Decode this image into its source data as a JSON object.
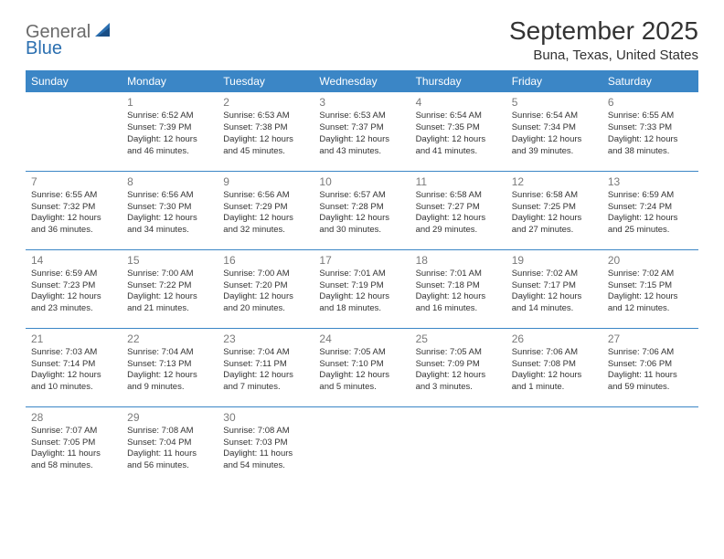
{
  "logo": {
    "part1": "General",
    "part2": "Blue"
  },
  "title": "September 2025",
  "location": "Buna, Texas, United States",
  "header_bg": "#3b86c6",
  "border_color": "#3b86c6",
  "weekdays": [
    "Sunday",
    "Monday",
    "Tuesday",
    "Wednesday",
    "Thursday",
    "Friday",
    "Saturday"
  ],
  "weeks": [
    [
      null,
      {
        "n": "1",
        "sr": "Sunrise: 6:52 AM",
        "ss": "Sunset: 7:39 PM",
        "d1": "Daylight: 12 hours",
        "d2": "and 46 minutes."
      },
      {
        "n": "2",
        "sr": "Sunrise: 6:53 AM",
        "ss": "Sunset: 7:38 PM",
        "d1": "Daylight: 12 hours",
        "d2": "and 45 minutes."
      },
      {
        "n": "3",
        "sr": "Sunrise: 6:53 AM",
        "ss": "Sunset: 7:37 PM",
        "d1": "Daylight: 12 hours",
        "d2": "and 43 minutes."
      },
      {
        "n": "4",
        "sr": "Sunrise: 6:54 AM",
        "ss": "Sunset: 7:35 PM",
        "d1": "Daylight: 12 hours",
        "d2": "and 41 minutes."
      },
      {
        "n": "5",
        "sr": "Sunrise: 6:54 AM",
        "ss": "Sunset: 7:34 PM",
        "d1": "Daylight: 12 hours",
        "d2": "and 39 minutes."
      },
      {
        "n": "6",
        "sr": "Sunrise: 6:55 AM",
        "ss": "Sunset: 7:33 PM",
        "d1": "Daylight: 12 hours",
        "d2": "and 38 minutes."
      }
    ],
    [
      {
        "n": "7",
        "sr": "Sunrise: 6:55 AM",
        "ss": "Sunset: 7:32 PM",
        "d1": "Daylight: 12 hours",
        "d2": "and 36 minutes."
      },
      {
        "n": "8",
        "sr": "Sunrise: 6:56 AM",
        "ss": "Sunset: 7:30 PM",
        "d1": "Daylight: 12 hours",
        "d2": "and 34 minutes."
      },
      {
        "n": "9",
        "sr": "Sunrise: 6:56 AM",
        "ss": "Sunset: 7:29 PM",
        "d1": "Daylight: 12 hours",
        "d2": "and 32 minutes."
      },
      {
        "n": "10",
        "sr": "Sunrise: 6:57 AM",
        "ss": "Sunset: 7:28 PM",
        "d1": "Daylight: 12 hours",
        "d2": "and 30 minutes."
      },
      {
        "n": "11",
        "sr": "Sunrise: 6:58 AM",
        "ss": "Sunset: 7:27 PM",
        "d1": "Daylight: 12 hours",
        "d2": "and 29 minutes."
      },
      {
        "n": "12",
        "sr": "Sunrise: 6:58 AM",
        "ss": "Sunset: 7:25 PM",
        "d1": "Daylight: 12 hours",
        "d2": "and 27 minutes."
      },
      {
        "n": "13",
        "sr": "Sunrise: 6:59 AM",
        "ss": "Sunset: 7:24 PM",
        "d1": "Daylight: 12 hours",
        "d2": "and 25 minutes."
      }
    ],
    [
      {
        "n": "14",
        "sr": "Sunrise: 6:59 AM",
        "ss": "Sunset: 7:23 PM",
        "d1": "Daylight: 12 hours",
        "d2": "and 23 minutes."
      },
      {
        "n": "15",
        "sr": "Sunrise: 7:00 AM",
        "ss": "Sunset: 7:22 PM",
        "d1": "Daylight: 12 hours",
        "d2": "and 21 minutes."
      },
      {
        "n": "16",
        "sr": "Sunrise: 7:00 AM",
        "ss": "Sunset: 7:20 PM",
        "d1": "Daylight: 12 hours",
        "d2": "and 20 minutes."
      },
      {
        "n": "17",
        "sr": "Sunrise: 7:01 AM",
        "ss": "Sunset: 7:19 PM",
        "d1": "Daylight: 12 hours",
        "d2": "and 18 minutes."
      },
      {
        "n": "18",
        "sr": "Sunrise: 7:01 AM",
        "ss": "Sunset: 7:18 PM",
        "d1": "Daylight: 12 hours",
        "d2": "and 16 minutes."
      },
      {
        "n": "19",
        "sr": "Sunrise: 7:02 AM",
        "ss": "Sunset: 7:17 PM",
        "d1": "Daylight: 12 hours",
        "d2": "and 14 minutes."
      },
      {
        "n": "20",
        "sr": "Sunrise: 7:02 AM",
        "ss": "Sunset: 7:15 PM",
        "d1": "Daylight: 12 hours",
        "d2": "and 12 minutes."
      }
    ],
    [
      {
        "n": "21",
        "sr": "Sunrise: 7:03 AM",
        "ss": "Sunset: 7:14 PM",
        "d1": "Daylight: 12 hours",
        "d2": "and 10 minutes."
      },
      {
        "n": "22",
        "sr": "Sunrise: 7:04 AM",
        "ss": "Sunset: 7:13 PM",
        "d1": "Daylight: 12 hours",
        "d2": "and 9 minutes."
      },
      {
        "n": "23",
        "sr": "Sunrise: 7:04 AM",
        "ss": "Sunset: 7:11 PM",
        "d1": "Daylight: 12 hours",
        "d2": "and 7 minutes."
      },
      {
        "n": "24",
        "sr": "Sunrise: 7:05 AM",
        "ss": "Sunset: 7:10 PM",
        "d1": "Daylight: 12 hours",
        "d2": "and 5 minutes."
      },
      {
        "n": "25",
        "sr": "Sunrise: 7:05 AM",
        "ss": "Sunset: 7:09 PM",
        "d1": "Daylight: 12 hours",
        "d2": "and 3 minutes."
      },
      {
        "n": "26",
        "sr": "Sunrise: 7:06 AM",
        "ss": "Sunset: 7:08 PM",
        "d1": "Daylight: 12 hours",
        "d2": "and 1 minute."
      },
      {
        "n": "27",
        "sr": "Sunrise: 7:06 AM",
        "ss": "Sunset: 7:06 PM",
        "d1": "Daylight: 11 hours",
        "d2": "and 59 minutes."
      }
    ],
    [
      {
        "n": "28",
        "sr": "Sunrise: 7:07 AM",
        "ss": "Sunset: 7:05 PM",
        "d1": "Daylight: 11 hours",
        "d2": "and 58 minutes."
      },
      {
        "n": "29",
        "sr": "Sunrise: 7:08 AM",
        "ss": "Sunset: 7:04 PM",
        "d1": "Daylight: 11 hours",
        "d2": "and 56 minutes."
      },
      {
        "n": "30",
        "sr": "Sunrise: 7:08 AM",
        "ss": "Sunset: 7:03 PM",
        "d1": "Daylight: 11 hours",
        "d2": "and 54 minutes."
      },
      null,
      null,
      null,
      null
    ]
  ]
}
